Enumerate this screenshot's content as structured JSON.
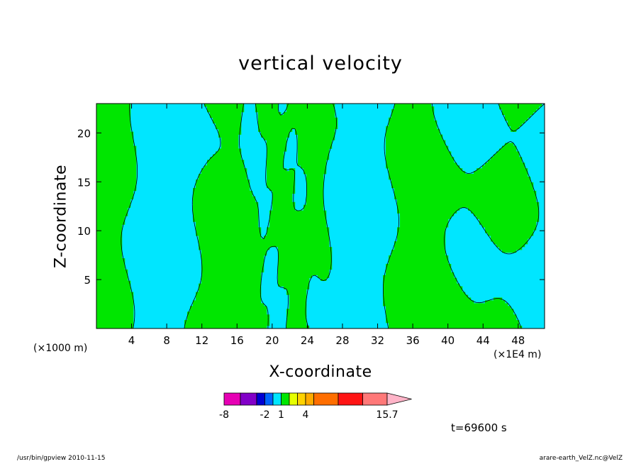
{
  "chart_data": {
    "type": "contour",
    "title": "vertical velocity",
    "xlabel": "X-coordinate",
    "ylabel": "Z-coordinate",
    "x_unit_note": "(×1000 m)",
    "x_scale_note": "(×1E4 m)",
    "xlim": [
      0,
      51
    ],
    "ylim": [
      0,
      23
    ],
    "x_ticks": [
      4,
      8,
      12,
      16,
      20,
      24,
      28,
      32,
      36,
      40,
      44,
      48
    ],
    "y_ticks": [
      5,
      10,
      15,
      20
    ],
    "field_colors": {
      "negative": "#00e6ff",
      "positive": "#00e600",
      "contour": "#000000"
    },
    "colorbar": {
      "colors": [
        "#e600b4",
        "#8200c8",
        "#0000d2",
        "#0064ff",
        "#00e6ff",
        "#00e600",
        "#e6ff00",
        "#ffd200",
        "#ffaa00",
        "#ff6e00",
        "#ff1414",
        "#ff7878",
        "#ffb4c8"
      ],
      "widths": [
        1,
        1,
        0.5,
        0.5,
        0.5,
        0.5,
        0.5,
        0.5,
        0.5,
        1.5,
        1.5,
        1.5,
        1.5
      ],
      "labels": [
        {
          "text": "-8",
          "index": 0
        },
        {
          "text": "-2",
          "index": 3
        },
        {
          "text": "1",
          "index": 5
        },
        {
          "text": "4",
          "index": 8
        },
        {
          "text": "15.7",
          "index": 12
        }
      ]
    },
    "time_label": "t=69600 s"
  },
  "footer": {
    "left": "/usr/bin/gpview   2010-11-15",
    "right": "arare-earth_VelZ.nc@VelZ"
  }
}
